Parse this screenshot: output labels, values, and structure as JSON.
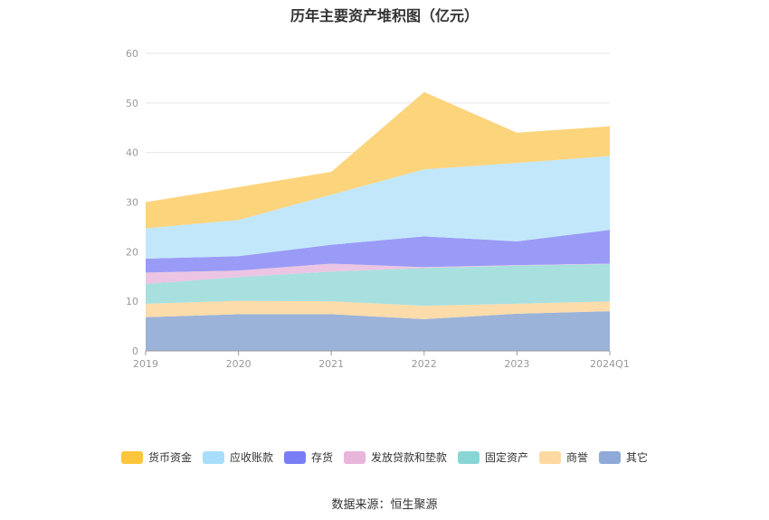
{
  "title": "历年主要资产堆积图（亿元）",
  "source": "数据来源：恒生聚源",
  "chart_data": {
    "type": "area",
    "stacked": true,
    "categories": [
      "2019",
      "2020",
      "2021",
      "2022",
      "2023",
      "2024Q1"
    ],
    "ylim": [
      0,
      60
    ],
    "yticks": [
      0,
      10,
      20,
      30,
      40,
      50,
      60
    ],
    "grid": true,
    "legend_position": "bottom",
    "series": [
      {
        "name": "其它",
        "color": "#9bb3d9",
        "values": [
          6.8,
          7.4,
          7.4,
          6.4,
          7.5,
          8.0
        ]
      },
      {
        "name": "商誉",
        "color": "#fcdcab",
        "values": [
          2.7,
          2.7,
          2.6,
          2.7,
          2.0,
          2.0
        ]
      },
      {
        "name": "固定资产",
        "color": "#a8e0df",
        "values": [
          4.0,
          4.8,
          6.0,
          7.6,
          7.7,
          7.5
        ]
      },
      {
        "name": "发放贷款和垫款",
        "color": "#ebc5e3",
        "values": [
          2.3,
          1.3,
          1.6,
          0.2,
          0.1,
          0.1
        ]
      },
      {
        "name": "存货",
        "color": "#9a9bf7",
        "values": [
          2.8,
          2.9,
          3.8,
          6.2,
          4.8,
          6.8
        ]
      },
      {
        "name": "应收账款",
        "color": "#c2e7fb",
        "values": [
          6.1,
          7.3,
          10.1,
          13.5,
          15.8,
          14.9
        ]
      },
      {
        "name": "货币资金",
        "color": "#fcd47c",
        "values": [
          5.3,
          6.6,
          4.6,
          15.6,
          6.1,
          6.0
        ]
      }
    ],
    "legend_order": [
      "货币资金",
      "应收账款",
      "存货",
      "发放贷款和垫款",
      "固定资产",
      "商誉",
      "其它"
    ],
    "legend_colors": {
      "货币资金": "#fcc63c",
      "应收账款": "#a8defb",
      "存货": "#7a7ef5",
      "发放贷款和垫款": "#e8b5db",
      "固定资产": "#88d6d4",
      "商誉": "#fcd9a0",
      "其它": "#8fa9d8"
    }
  }
}
